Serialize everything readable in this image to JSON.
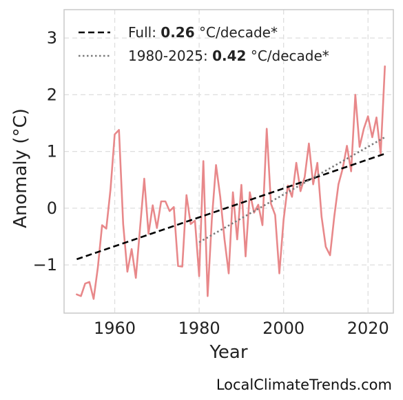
{
  "chart_data": {
    "type": "line",
    "xlabel": "Year",
    "ylabel": "Anomaly (°C)",
    "xlim": [
      1948,
      2026
    ],
    "ylim": [
      -1.85,
      3.5
    ],
    "xticks": [
      1960,
      1980,
      2000,
      2020
    ],
    "xtick_labels": [
      "1960",
      "1980",
      "2000",
      "2020"
    ],
    "yticks": [
      -1,
      0,
      1,
      2,
      3
    ],
    "ytick_labels": [
      "−1",
      "0",
      "1",
      "2",
      "3"
    ],
    "grid": true,
    "legend_position": "top-left",
    "series": [
      {
        "color": "#e8888a",
        "x": [
          1951,
          1952,
          1953,
          1954,
          1955,
          1956,
          1957,
          1958,
          1959,
          1960,
          1961,
          1962,
          1963,
          1964,
          1965,
          1966,
          1967,
          1968,
          1969,
          1970,
          1971,
          1972,
          1973,
          1974,
          1975,
          1976,
          1977,
          1978,
          1979,
          1980,
          1981,
          1982,
          1983,
          1984,
          1985,
          1986,
          1987,
          1988,
          1989,
          1990,
          1991,
          1992,
          1993,
          1994,
          1995,
          1996,
          1997,
          1998,
          1999,
          2000,
          2001,
          2002,
          2003,
          2004,
          2005,
          2006,
          2007,
          2008,
          2009,
          2010,
          2011,
          2012,
          2013,
          2014,
          2015,
          2016,
          2017,
          2018,
          2019,
          2020,
          2021,
          2022,
          2023,
          2024
        ],
        "y": [
          -1.52,
          -1.55,
          -1.33,
          -1.3,
          -1.6,
          -1.05,
          -0.3,
          -0.36,
          0.33,
          1.3,
          1.38,
          -0.28,
          -1.12,
          -0.72,
          -1.23,
          -0.35,
          0.52,
          -0.45,
          0.05,
          -0.35,
          0.12,
          0.12,
          -0.05,
          0.02,
          -1.02,
          -1.03,
          0.23,
          -0.28,
          -0.22,
          -1.2,
          0.83,
          -1.55,
          -0.2,
          0.76,
          0.2,
          -0.55,
          -1.15,
          0.28,
          -0.55,
          0.41,
          -0.85,
          0.28,
          -0.08,
          0.06,
          -0.3,
          1.4,
          0.08,
          -0.12,
          -1.15,
          -0.2,
          0.4,
          0.2,
          0.8,
          0.3,
          0.55,
          1.14,
          0.42,
          0.8,
          -0.15,
          -0.68,
          -0.83,
          -0.15,
          0.42,
          0.7,
          1.1,
          0.65,
          2.0,
          1.08,
          1.4,
          1.62,
          1.25,
          1.6,
          0.96,
          2.5
        ]
      },
      {
        "name": "Full:",
        "rate": "0.26",
        "unit": "°C/decade*",
        "style": "dashed",
        "color": "#000000",
        "x": [
          1951,
          2024
        ],
        "y": [
          -0.9,
          0.96
        ]
      },
      {
        "name": "1980-2025:",
        "rate": "0.42",
        "unit": "°C/decade*",
        "style": "dotted",
        "color": "#7a7a7a",
        "x": [
          1980,
          2024
        ],
        "y": [
          -0.6,
          1.25
        ]
      }
    ]
  },
  "watermark": "LocalClimateTrends.com"
}
